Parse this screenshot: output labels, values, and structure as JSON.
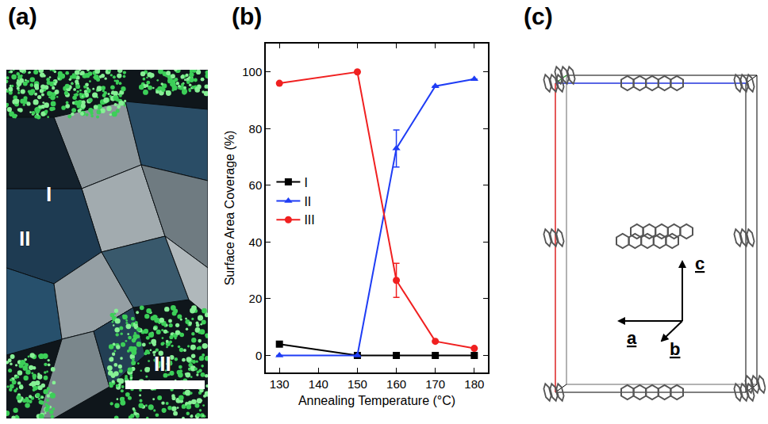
{
  "panel_labels": [
    "(a)",
    "(b)",
    "(c)"
  ],
  "micrograph": {
    "region_labels": [
      "I",
      "II",
      "III"
    ]
  },
  "chart_data": {
    "type": "line",
    "x_label": "Annealing Temperature (°C)",
    "y_label": "Surface Area Coverage (%)",
    "x": [
      130,
      150,
      160,
      170,
      180
    ],
    "series": [
      {
        "name": "I",
        "color": "#000000",
        "marker": "square",
        "values": [
          4,
          0,
          0,
          0,
          0
        ]
      },
      {
        "name": "II",
        "color": "#1f3df5",
        "marker": "triangle-up",
        "values": [
          0,
          0,
          73,
          95,
          97.5
        ],
        "error": [
          null,
          null,
          6.5,
          null,
          null
        ]
      },
      {
        "name": "III",
        "color": "#f02020",
        "marker": "circle",
        "values": [
          96,
          100,
          26.5,
          5,
          2.5
        ],
        "error": [
          null,
          null,
          6,
          null,
          null
        ]
      }
    ],
    "xlim": [
      126.5,
      183.5
    ],
    "xticks": [
      130,
      140,
      150,
      160,
      170,
      180
    ],
    "ylim": [
      -6,
      110
    ],
    "yticks": [
      0,
      20,
      40,
      60,
      80,
      100
    ],
    "grid": false,
    "legend": "left"
  },
  "crystal": {
    "axis_labels": [
      "a",
      "b",
      "c"
    ]
  }
}
